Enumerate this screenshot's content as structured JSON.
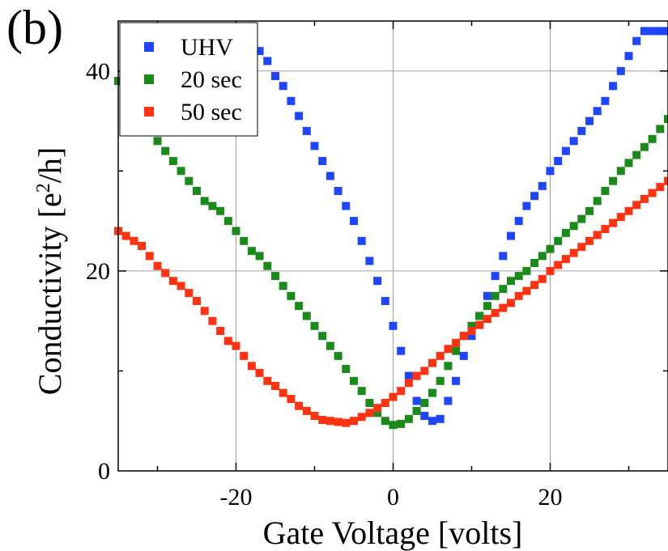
{
  "panel_label": "(b)",
  "chart_data": {
    "type": "scatter",
    "title": "",
    "xlabel": "Gate Voltage [volts]",
    "ylabel": "Conductivity [e",
    "ylabel_sup": "2",
    "ylabel_tail": "/h]",
    "xlim": [
      -35,
      35
    ],
    "ylim": [
      0,
      45
    ],
    "xticks": [
      -20,
      0,
      20
    ],
    "xtick_labels": [
      "-20",
      "0",
      "20"
    ],
    "yticks": [
      0,
      20,
      40
    ],
    "ytick_labels": [
      "0",
      "20",
      "40"
    ],
    "grid": true,
    "legend_position": "top-left",
    "series": [
      {
        "name": "UHV",
        "color": "#1f45ff",
        "points": [
          [
            -17,
            42
          ],
          [
            -16,
            41
          ],
          [
            -15,
            39.5
          ],
          [
            -14,
            38.5
          ],
          [
            -13,
            37
          ],
          [
            -12,
            35.5
          ],
          [
            -11,
            34
          ],
          [
            -10,
            32.5
          ],
          [
            -9,
            31
          ],
          [
            -8,
            29.5
          ],
          [
            -7,
            28
          ],
          [
            -6,
            26.5
          ],
          [
            -5,
            25
          ],
          [
            -4,
            23
          ],
          [
            -3,
            21
          ],
          [
            -2,
            19
          ],
          [
            -1,
            17
          ],
          [
            0,
            14.5
          ],
          [
            1,
            12
          ],
          [
            2,
            9.5
          ],
          [
            3,
            7
          ],
          [
            4,
            5.5
          ],
          [
            5,
            5
          ],
          [
            6,
            5.2
          ],
          [
            7,
            7
          ],
          [
            8,
            9
          ],
          [
            9,
            11.5
          ],
          [
            10,
            13.5
          ],
          [
            11,
            15.5
          ],
          [
            12,
            17.5
          ],
          [
            13,
            19.5
          ],
          [
            14,
            21.5
          ],
          [
            15,
            23.5
          ],
          [
            16,
            25
          ],
          [
            17,
            26.5
          ],
          [
            18,
            27.5
          ],
          [
            19,
            28.5
          ],
          [
            20,
            30
          ],
          [
            21,
            31
          ],
          [
            22,
            32
          ],
          [
            23,
            33
          ],
          [
            24,
            34
          ],
          [
            25,
            35
          ],
          [
            26,
            36
          ],
          [
            27,
            37
          ],
          [
            28,
            38.5
          ],
          [
            29,
            40
          ],
          [
            30,
            41.5
          ],
          [
            31,
            43
          ],
          [
            32,
            44
          ],
          [
            33,
            44
          ],
          [
            34,
            44
          ],
          [
            35,
            44
          ]
        ]
      },
      {
        "name": "20 sec",
        "color": "#1a8a1a",
        "points": [
          [
            -35,
            39
          ],
          [
            -34,
            37.5
          ],
          [
            -33,
            36
          ],
          [
            -32,
            35
          ],
          [
            -31,
            34
          ],
          [
            -30,
            33
          ],
          [
            -29,
            32
          ],
          [
            -28,
            31
          ],
          [
            -27,
            30
          ],
          [
            -26,
            29
          ],
          [
            -25,
            28
          ],
          [
            -24,
            27
          ],
          [
            -23,
            26.5
          ],
          [
            -22,
            26
          ],
          [
            -21,
            25
          ],
          [
            -20,
            24
          ],
          [
            -19,
            23
          ],
          [
            -18,
            22
          ],
          [
            -17,
            21.5
          ],
          [
            -16,
            20.5
          ],
          [
            -15,
            19.5
          ],
          [
            -14,
            18.5
          ],
          [
            -13,
            17.5
          ],
          [
            -12,
            16.5
          ],
          [
            -11,
            15.5
          ],
          [
            -10,
            14.5
          ],
          [
            -9,
            13.5
          ],
          [
            -8,
            12.5
          ],
          [
            -7,
            11.5
          ],
          [
            -6,
            10.2
          ],
          [
            -5,
            9
          ],
          [
            -4,
            8
          ],
          [
            -3,
            6.8
          ],
          [
            -2,
            5.8
          ],
          [
            -1,
            5
          ],
          [
            0,
            4.6
          ],
          [
            1,
            4.7
          ],
          [
            2,
            5.2
          ],
          [
            3,
            6
          ],
          [
            4,
            6.8
          ],
          [
            5,
            7.8
          ],
          [
            6,
            9
          ],
          [
            7,
            10.5
          ],
          [
            8,
            12
          ],
          [
            9,
            13.5
          ],
          [
            10,
            14.5
          ],
          [
            11,
            15.5
          ],
          [
            12,
            16.5
          ],
          [
            13,
            17.5
          ],
          [
            14,
            18.2
          ],
          [
            15,
            19
          ],
          [
            16,
            19.5
          ],
          [
            17,
            20
          ],
          [
            18,
            20.8
          ],
          [
            19,
            21.5
          ],
          [
            20,
            22.2
          ],
          [
            21,
            23
          ],
          [
            22,
            23.8
          ],
          [
            23,
            24.5
          ],
          [
            24,
            25.2
          ],
          [
            25,
            26
          ],
          [
            26,
            27
          ],
          [
            27,
            28
          ],
          [
            28,
            29
          ],
          [
            29,
            30
          ],
          [
            30,
            30.8
          ],
          [
            31,
            31.6
          ],
          [
            32,
            32.4
          ],
          [
            33,
            33.2
          ],
          [
            34,
            34.2
          ],
          [
            35,
            35.2
          ]
        ]
      },
      {
        "name": "50 sec",
        "color": "#ff3311",
        "points": [
          [
            -35,
            24
          ],
          [
            -34,
            23.5
          ],
          [
            -33,
            23
          ],
          [
            -32,
            22.5
          ],
          [
            -31,
            21.5
          ],
          [
            -30,
            20.5
          ],
          [
            -29,
            19.8
          ],
          [
            -28,
            19
          ],
          [
            -27,
            18.5
          ],
          [
            -26,
            17.8
          ],
          [
            -25,
            17
          ],
          [
            -24,
            16
          ],
          [
            -23,
            15
          ],
          [
            -22,
            14
          ],
          [
            -21,
            13
          ],
          [
            -20,
            12.5
          ],
          [
            -19,
            11.5
          ],
          [
            -18,
            10.5
          ],
          [
            -17,
            9.8
          ],
          [
            -16,
            9
          ],
          [
            -15,
            8.5
          ],
          [
            -14,
            7.8
          ],
          [
            -13,
            7.2
          ],
          [
            -12,
            6.5
          ],
          [
            -11,
            6
          ],
          [
            -10,
            5.5
          ],
          [
            -9,
            5.1
          ],
          [
            -8,
            5
          ],
          [
            -7,
            4.9
          ],
          [
            -6,
            4.8
          ],
          [
            -5,
            5
          ],
          [
            -4,
            5.4
          ],
          [
            -3,
            5.8
          ],
          [
            -2,
            6.3
          ],
          [
            -1,
            6.8
          ],
          [
            0,
            7.4
          ],
          [
            1,
            8
          ],
          [
            2,
            8.8
          ],
          [
            3,
            9.5
          ],
          [
            4,
            10
          ],
          [
            5,
            10.8
          ],
          [
            6,
            11.5
          ],
          [
            7,
            12.2
          ],
          [
            8,
            12.8
          ],
          [
            9,
            13.5
          ],
          [
            10,
            14
          ],
          [
            11,
            14.6
          ],
          [
            12,
            15.2
          ],
          [
            13,
            15.8
          ],
          [
            14,
            16.3
          ],
          [
            15,
            16.8
          ],
          [
            16,
            17.5
          ],
          [
            17,
            18
          ],
          [
            18,
            18.6
          ],
          [
            19,
            19.2
          ],
          [
            20,
            20
          ],
          [
            21,
            20.6
          ],
          [
            22,
            21.2
          ],
          [
            23,
            21.8
          ],
          [
            24,
            22.4
          ],
          [
            25,
            23
          ],
          [
            26,
            23.6
          ],
          [
            27,
            24.2
          ],
          [
            28,
            24.8
          ],
          [
            29,
            25.4
          ],
          [
            30,
            26
          ],
          [
            31,
            26.6
          ],
          [
            32,
            27.2
          ],
          [
            33,
            27.8
          ],
          [
            34,
            28.4
          ],
          [
            35,
            29
          ]
        ]
      }
    ]
  }
}
